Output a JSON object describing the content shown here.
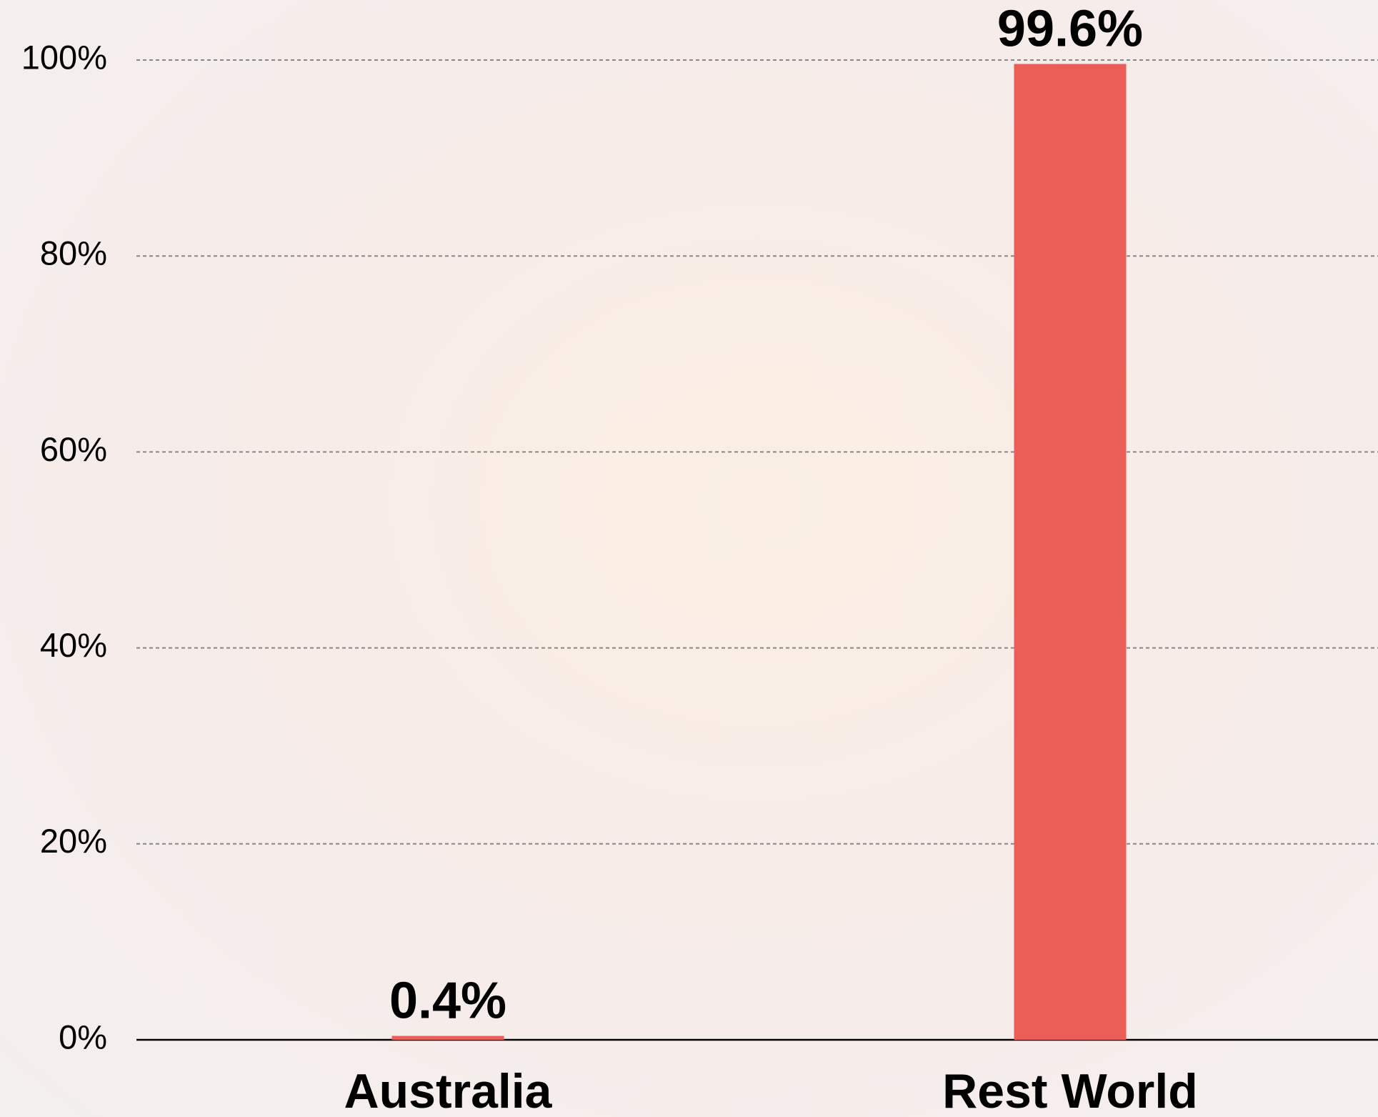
{
  "chart_data": {
    "type": "bar",
    "categories": [
      "Australia",
      "Rest World"
    ],
    "values": [
      0.4,
      99.6
    ],
    "value_labels": [
      "0.4%",
      "99.6%"
    ],
    "color": "#eb5e57",
    "ylim": [
      0,
      100
    ],
    "yticks": [
      {
        "value": 0,
        "label": "0%"
      },
      {
        "value": 20,
        "label": "20%"
      },
      {
        "value": 40,
        "label": "40%"
      },
      {
        "value": 60,
        "label": "60%"
      },
      {
        "value": 80,
        "label": "80%"
      },
      {
        "value": 100,
        "label": "100%"
      }
    ],
    "grid": true
  }
}
